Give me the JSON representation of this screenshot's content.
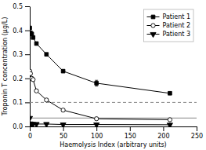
{
  "chart_data": {
    "type": "line",
    "xlabel": "Haemolysis Index (arbitrary units)",
    "ylabel": "Troponin T concentration (µg/L)",
    "series": [
      {
        "name": "Patient 1",
        "color": "#000000",
        "marker": "square",
        "x": [
          0,
          1,
          3,
          5,
          10,
          25,
          50,
          100,
          210
        ],
        "values": [
          0.41,
          0.39,
          0.385,
          0.37,
          0.345,
          0.3,
          0.23,
          0.18,
          0.138
        ],
        "errors": [
          0.0,
          0.005,
          0.005,
          0.005,
          0.005,
          0.005,
          0.005,
          0.012,
          0.005
        ]
      },
      {
        "name": "Patient 2",
        "color": "#000000",
        "marker": "open-circle",
        "x": [
          0,
          1,
          3,
          5,
          10,
          25,
          50,
          100,
          210
        ],
        "values": [
          0.23,
          0.22,
          0.2,
          0.195,
          0.148,
          0.11,
          0.068,
          0.032,
          0.028
        ],
        "errors": [
          0.005,
          0.005,
          0.005,
          0.005,
          0.005,
          0.005,
          0.005,
          0.003,
          0.003
        ]
      },
      {
        "name": "Patient 3",
        "color": "#000000",
        "marker": "triangle-down",
        "x": [
          0,
          1,
          3,
          5,
          10,
          25,
          50,
          100,
          210
        ],
        "values": [
          0.035,
          0.012,
          0.01,
          0.01,
          0.01,
          0.01,
          0.008,
          0.008,
          0.007
        ],
        "errors": [
          0.002,
          0.001,
          0.001,
          0.001,
          0.001,
          0.001,
          0.001,
          0.001,
          0.001
        ]
      }
    ],
    "reference_lines": [
      {
        "y": 0.1,
        "line_style": "dashed",
        "color": "#888888"
      },
      {
        "y": 0.035,
        "line_style": "solid",
        "color": "#888888"
      }
    ],
    "xlim": [
      0,
      250
    ],
    "ylim": [
      0,
      0.5
    ],
    "xticks": [
      0,
      50,
      100,
      150,
      200,
      250
    ],
    "yticks": [
      {
        "value": 0,
        "label": "0.0"
      },
      0.1,
      0.2,
      0.3,
      0.4,
      0.5
    ],
    "grid": false,
    "legend": "upper right"
  }
}
